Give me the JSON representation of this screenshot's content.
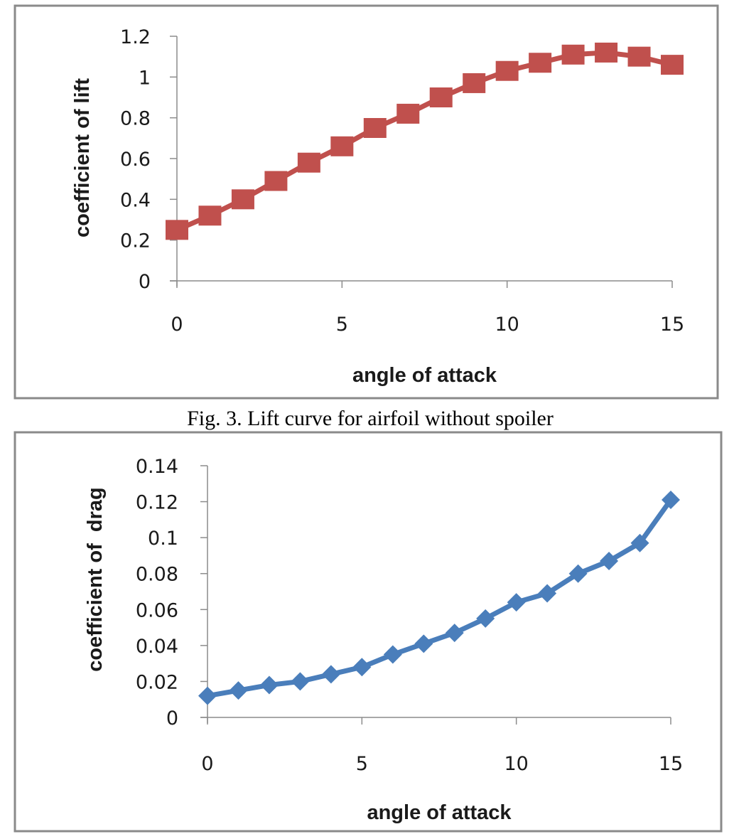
{
  "caption": "Fig. 3.  Lift curve for airfoil without spoiler",
  "colors": {
    "lift_series": "#c0504d",
    "drag_series": "#4a7ebb",
    "axis": "#8c8c8c",
    "frame": "#8a8a8a"
  },
  "chart_data": [
    {
      "type": "line",
      "title": "",
      "xlabel": "angle of attack",
      "ylabel": "coefficient of lift",
      "xlim": [
        0,
        15
      ],
      "ylim": [
        0,
        1.2
      ],
      "xticks": [
        "0",
        "5",
        "10",
        "15"
      ],
      "yticks": [
        "0",
        "0.2",
        "0.4",
        "0.6",
        "0.8",
        "1",
        "1.2"
      ],
      "grid": false,
      "legend": "none",
      "marker": "square",
      "series": [
        {
          "name": "coefficient of lift",
          "x": [
            0,
            1,
            2,
            3,
            4,
            5,
            6,
            7,
            8,
            9,
            10,
            11,
            12,
            13,
            14,
            15
          ],
          "values": [
            0.25,
            0.32,
            0.4,
            0.49,
            0.58,
            0.66,
            0.75,
            0.82,
            0.9,
            0.97,
            1.03,
            1.07,
            1.11,
            1.12,
            1.1,
            1.06
          ]
        }
      ]
    },
    {
      "type": "line",
      "title": "",
      "xlabel": "angle of attack",
      "ylabel": "coefficient of  drag",
      "xlim": [
        0,
        15
      ],
      "ylim": [
        0,
        0.14
      ],
      "xticks": [
        "0",
        "5",
        "10",
        "15"
      ],
      "yticks": [
        "0",
        "0.02",
        "0.04",
        "0.06",
        "0.08",
        "0.1",
        "0.12",
        "0.14"
      ],
      "grid": false,
      "legend": "none",
      "marker": "diamond",
      "series": [
        {
          "name": "coefficient of drag",
          "x": [
            0,
            1,
            2,
            3,
            4,
            5,
            6,
            7,
            8,
            9,
            10,
            11,
            12,
            13,
            14,
            15
          ],
          "values": [
            0.012,
            0.015,
            0.018,
            0.02,
            0.024,
            0.028,
            0.035,
            0.041,
            0.047,
            0.055,
            0.064,
            0.069,
            0.08,
            0.087,
            0.097,
            0.121
          ]
        }
      ]
    }
  ]
}
